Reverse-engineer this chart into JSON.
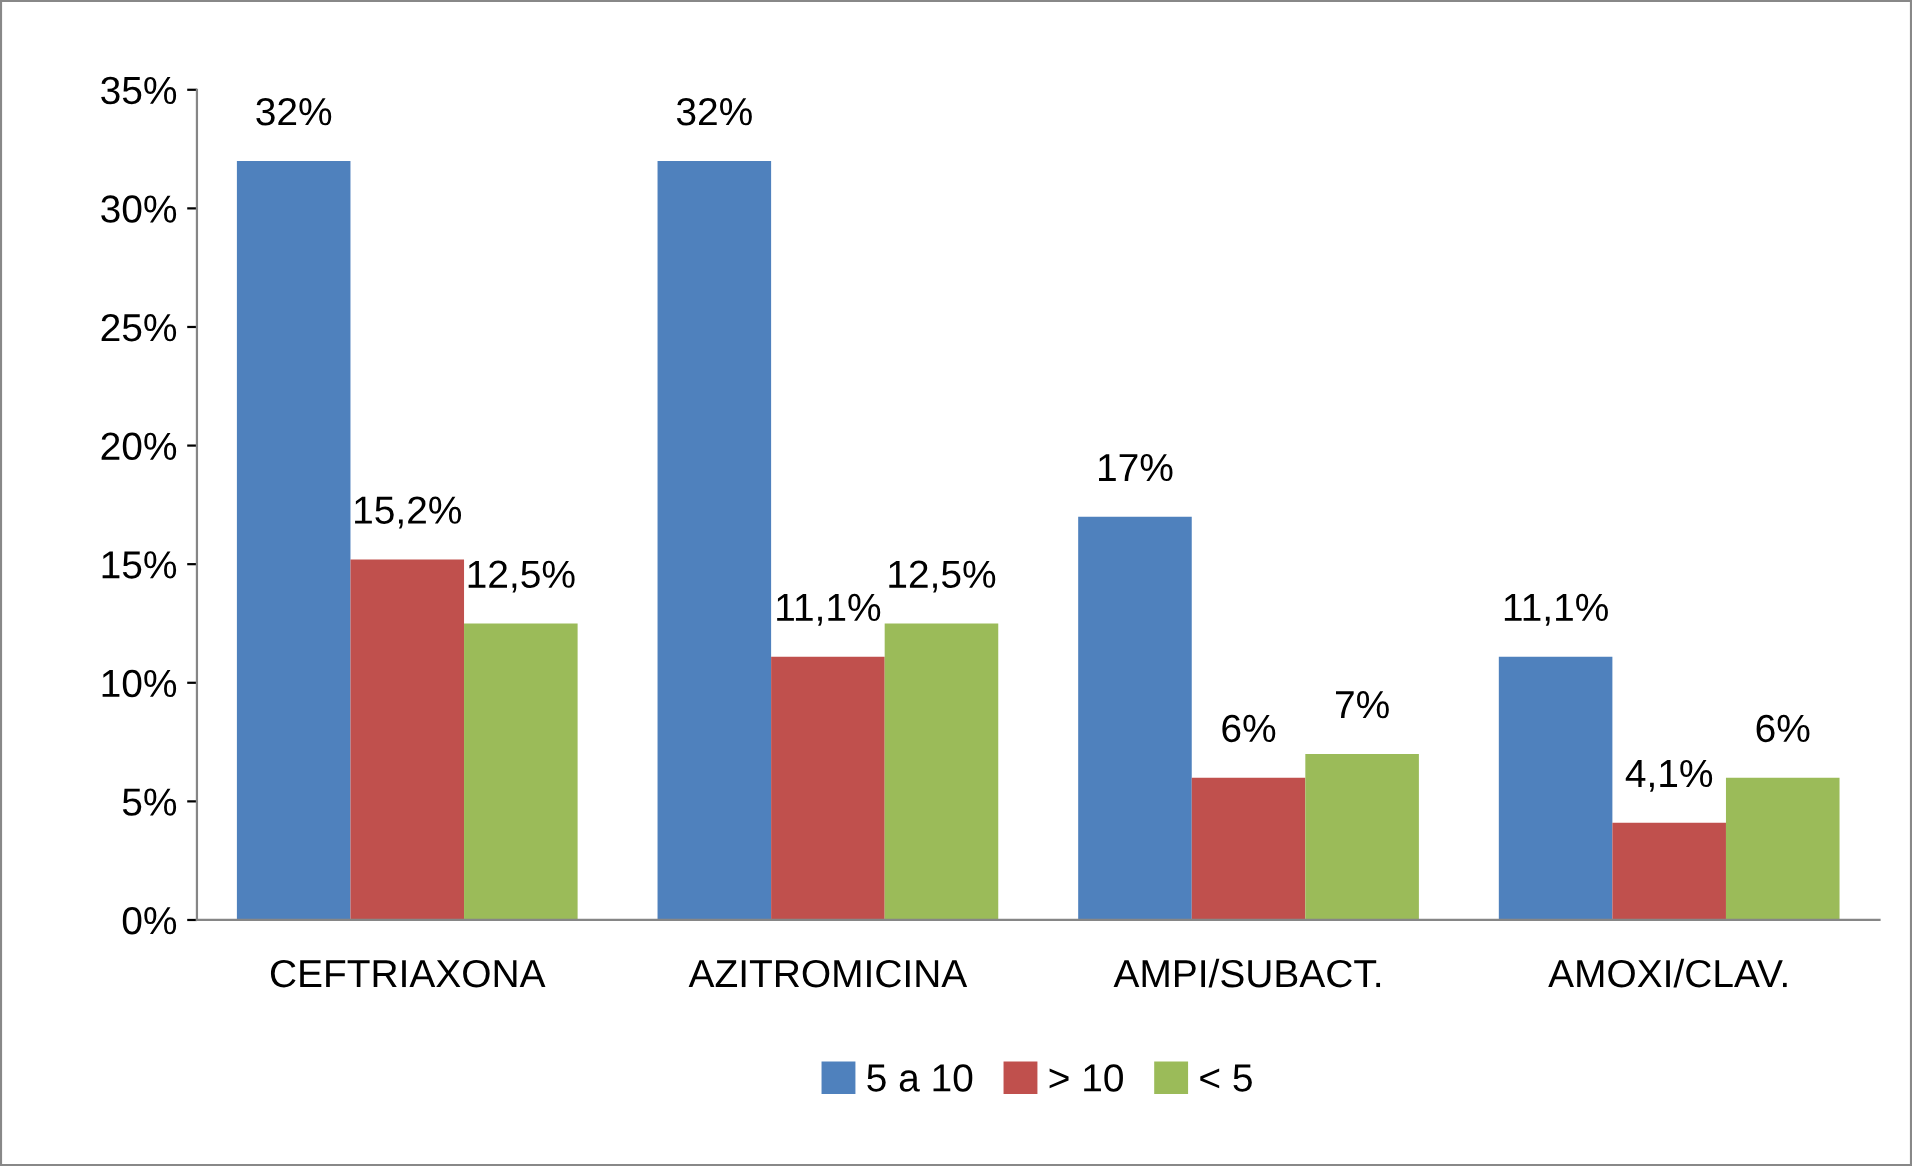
{
  "chart_data": {
    "type": "bar",
    "categories": [
      "CEFTRIAXONA",
      "AZITROMICINA",
      "AMPI/SUBACT.",
      "AMOXI/CLAV."
    ],
    "series": [
      {
        "name": "5 a 10",
        "color": "#4f81bd",
        "values": [
          32,
          32,
          17,
          11.1
        ],
        "value_labels": [
          "32%",
          "32%",
          "17%",
          "11,1%"
        ]
      },
      {
        "name": "> 10",
        "color": "#c0504d",
        "values": [
          15.2,
          11.1,
          6,
          4.1
        ],
        "value_labels": [
          "15,2%",
          "11,1%",
          "6%",
          "4,1%"
        ]
      },
      {
        "name": "< 5",
        "color": "#9bbb59",
        "values": [
          12.5,
          12.5,
          7,
          6
        ],
        "value_labels": [
          "12,5%",
          "12,5%",
          "7%",
          "6%"
        ]
      }
    ],
    "ylim": [
      0,
      35
    ],
    "yticks": [
      {
        "value": 0,
        "label": "0%"
      },
      {
        "value": 5,
        "label": "5%"
      },
      {
        "value": 10,
        "label": "10%"
      },
      {
        "value": 15,
        "label": "15%"
      },
      {
        "value": 20,
        "label": "20%"
      },
      {
        "value": 25,
        "label": "25%"
      },
      {
        "value": 30,
        "label": "30%"
      },
      {
        "value": 35,
        "label": "35%"
      }
    ],
    "grid": false,
    "legend": "bottom"
  }
}
